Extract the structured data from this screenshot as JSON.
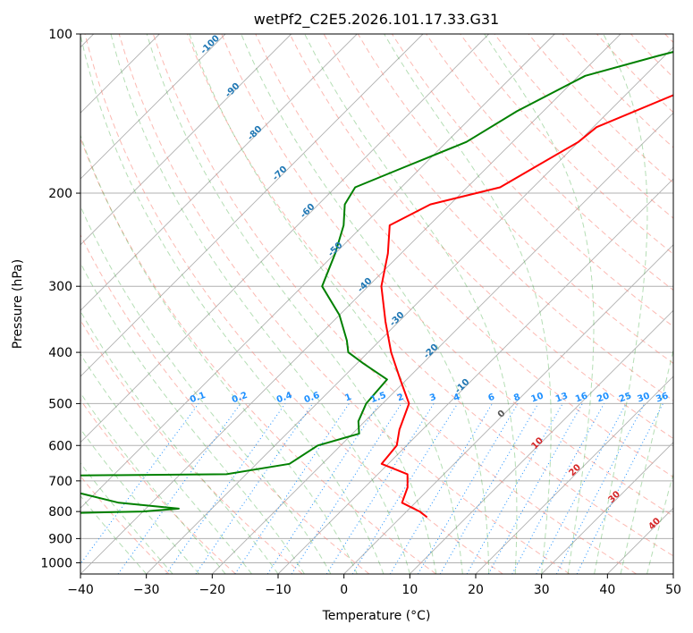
{
  "chart_data": {
    "type": "line",
    "subtype": "skew-t log-p sounding",
    "title": "wetPf2_C2E5.2026.101.17.33.G31",
    "xlabel": "Temperature (°C)",
    "ylabel": "Pressure (hPa)",
    "xlim": [
      -40,
      50
    ],
    "ylim": [
      1050,
      100
    ],
    "y_scale": "log",
    "x_ticks": [
      -40,
      -30,
      -20,
      -10,
      0,
      10,
      20,
      30,
      40,
      50
    ],
    "y_ticks": [
      100,
      200,
      300,
      400,
      500,
      600,
      700,
      800,
      900,
      1000
    ],
    "grid": true,
    "legend": "none",
    "colors": {
      "temperature": "#ff0000",
      "dewpoint": "#008000",
      "isotherm": "#b0b0b0",
      "dry_adiabat": "#fa8072",
      "moist_adiabat": "#2ca02c",
      "mixing_ratio": "#1e90ff",
      "dry_adiabat_label": "#1f77b4",
      "moist_adiabat_label": "#d62728",
      "isobar_grid": "#b0b0b0"
    },
    "series": [
      {
        "values": [
          [
            100,
            -17.5
          ],
          [
            115,
            -19
          ],
          [
            130,
            -22.5
          ],
          [
            150,
            -29.5
          ],
          [
            160,
            -30
          ],
          [
            180,
            -33
          ],
          [
            195,
            -35
          ],
          [
            210,
            -43
          ],
          [
            230,
            -46
          ],
          [
            260,
            -42
          ],
          [
            300,
            -38
          ],
          [
            350,
            -32
          ],
          [
            400,
            -26.5
          ],
          [
            450,
            -21
          ],
          [
            500,
            -16
          ],
          [
            560,
            -13.5
          ],
          [
            600,
            -11.5
          ],
          [
            650,
            -11
          ],
          [
            680,
            -5.5
          ],
          [
            720,
            -3.5
          ],
          [
            770,
            -2
          ],
          [
            800,
            2
          ],
          [
            820,
            4
          ]
        ]
      },
      {
        "values": [
          [
            100,
            -21.5
          ],
          [
            110,
            -31
          ],
          [
            120,
            -39
          ],
          [
            140,
            -44
          ],
          [
            160,
            -47
          ],
          [
            180,
            -53
          ],
          [
            195,
            -57
          ],
          [
            210,
            -56
          ],
          [
            230,
            -53
          ],
          [
            260,
            -50
          ],
          [
            300,
            -47
          ],
          [
            340,
            -40
          ],
          [
            380,
            -35
          ],
          [
            400,
            -33
          ],
          [
            420,
            -29
          ],
          [
            450,
            -23
          ],
          [
            500,
            -22.5
          ],
          [
            540,
            -21
          ],
          [
            570,
            -19
          ],
          [
            600,
            -23.5
          ],
          [
            650,
            -25
          ],
          [
            680,
            -33
          ],
          [
            685,
            -64
          ],
          [
            690,
            -65
          ],
          [
            700,
            -57
          ],
          [
            720,
            -60
          ],
          [
            740,
            -52
          ],
          [
            770,
            -45
          ],
          [
            790,
            -35
          ],
          [
            800,
            -40
          ],
          [
            805,
            -50
          ],
          [
            810,
            -57
          ],
          [
            815,
            -62
          ],
          [
            820,
            -57
          ],
          [
            825,
            -59
          ]
        ]
      }
    ],
    "dry_adiabat_labels": [
      "-100",
      "-90",
      "-80",
      "-70",
      "-60",
      "-50",
      "-40",
      "-30",
      "-20",
      "-10"
    ],
    "moist_adiabat_labels": [
      "0",
      "10",
      "20",
      "30",
      "40"
    ],
    "mixing_ratio_labels": [
      "0.1",
      "0.2",
      "0.4",
      "0.6",
      "1",
      "1.5",
      "2",
      "3",
      "4",
      "6",
      "8",
      "10",
      "13",
      "16",
      "20",
      "25",
      "30",
      "36"
    ]
  }
}
